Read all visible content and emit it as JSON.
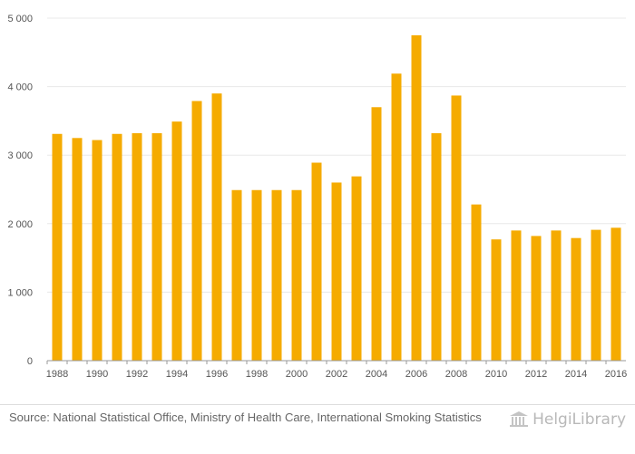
{
  "chart_data": {
    "type": "bar",
    "categories": [
      "1988",
      "1989",
      "1990",
      "1991",
      "1992",
      "1993",
      "1994",
      "1995",
      "1996",
      "1997",
      "1998",
      "1999",
      "2000",
      "2001",
      "2002",
      "2003",
      "2004",
      "2005",
      "2006",
      "2007",
      "2008",
      "2009",
      "2010",
      "2011",
      "2012",
      "2013",
      "2014",
      "2015",
      "2016"
    ],
    "values": [
      3310,
      3250,
      3220,
      3310,
      3320,
      3320,
      3490,
      3790,
      3900,
      2490,
      2490,
      2490,
      2490,
      2890,
      2600,
      2690,
      3700,
      4190,
      4750,
      3320,
      3870,
      2280,
      1770,
      1900,
      1820,
      1900,
      1790,
      1910,
      1940
    ],
    "x_tick_labels": [
      "1988",
      "1990",
      "1992",
      "1994",
      "1996",
      "1998",
      "2000",
      "2002",
      "2004",
      "2006",
      "2008",
      "2010",
      "2012",
      "2014",
      "2016"
    ],
    "y_tick_labels": [
      "0",
      "1 000",
      "2 000",
      "3 000",
      "4 000",
      "5 000"
    ],
    "ylim": [
      0,
      5000
    ],
    "title": "",
    "xlabel": "",
    "ylabel": "",
    "grid": true,
    "bar_color": "#f5ab00"
  },
  "footer": {
    "source": "Source: National Statistical Office, Ministry of Health Care, International Smoking Statistics",
    "logo_text": "HelgiLibrary"
  }
}
